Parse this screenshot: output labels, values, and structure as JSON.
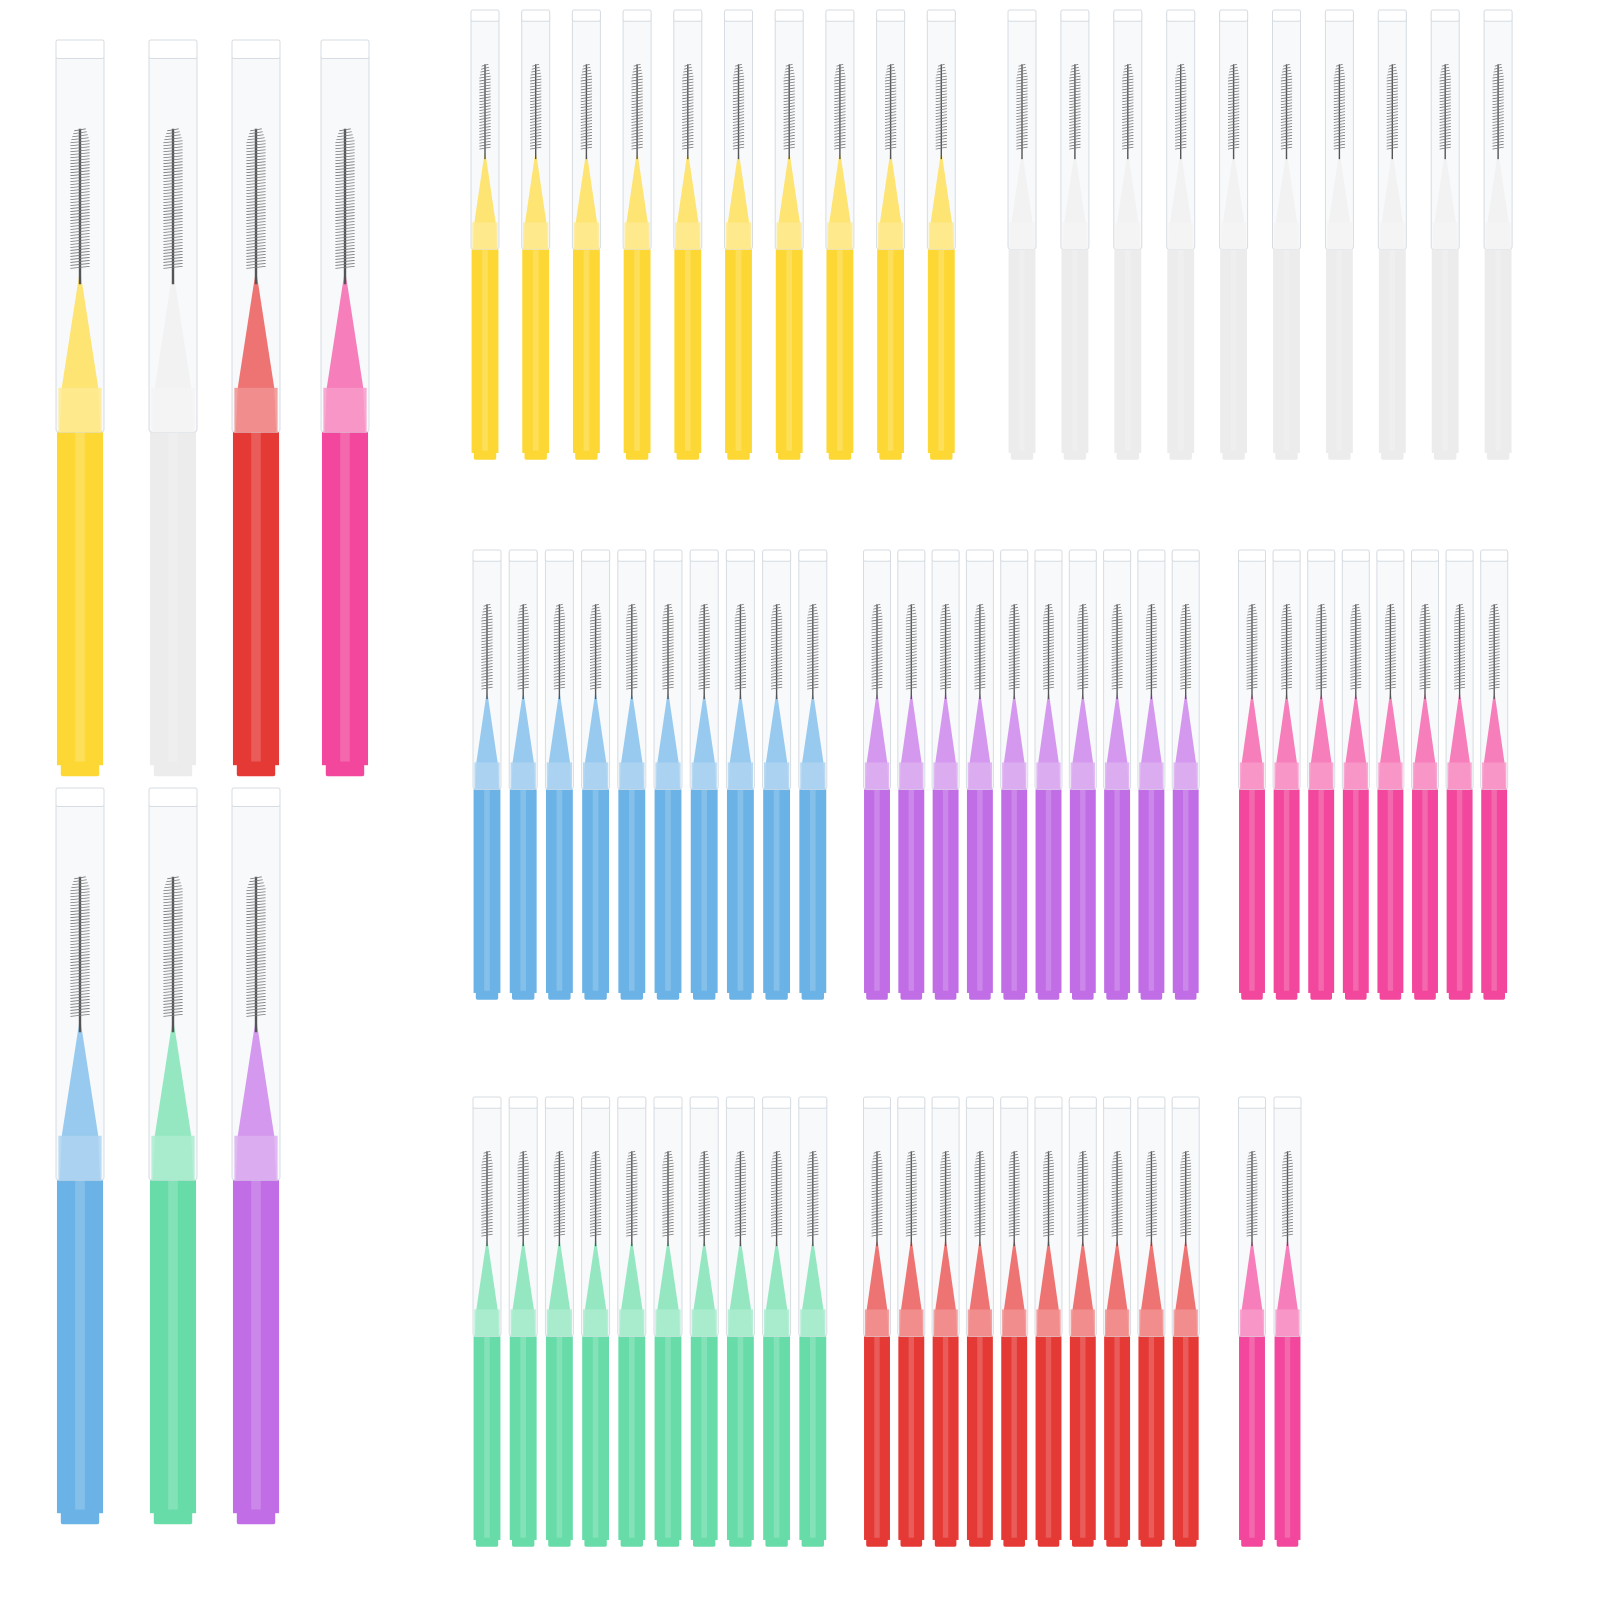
{
  "colors": {
    "yellow": "#FDD835",
    "white": "#ECECEC",
    "red": "#E53935",
    "pink": "#F2479C",
    "blue": "#6BB3E6",
    "purple": "#C16DE6",
    "green": "#68DCA8",
    "cap": "#F7F9FB",
    "cap_edge": "#D6DCE2",
    "wire": "#555555"
  },
  "featured_brushes": [
    {
      "color": "yellow"
    },
    {
      "color": "white"
    },
    {
      "color": "red"
    },
    {
      "color": "pink"
    },
    {
      "color": "blue"
    },
    {
      "color": "green"
    },
    {
      "color": "purple"
    }
  ],
  "brush_groups": [
    {
      "color": "yellow",
      "count": 10
    },
    {
      "color": "white",
      "count": 10
    },
    {
      "color": "blue",
      "count": 10
    },
    {
      "color": "purple",
      "count": 10
    },
    {
      "color": "pink",
      "count": 8
    },
    {
      "color": "green",
      "count": 10
    },
    {
      "color": "red",
      "count": 10
    },
    {
      "color": "pink",
      "count": 2
    }
  ]
}
